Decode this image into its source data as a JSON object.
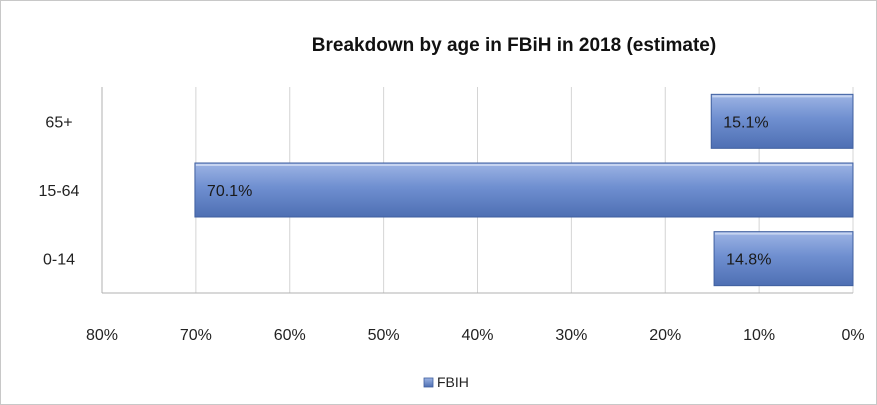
{
  "chart_data": {
    "type": "bar",
    "orientation": "horizontal",
    "x_axis_reversed": true,
    "title": "Breakdown by age  in FBiH in 2018 (estimate)",
    "categories": [
      "65+",
      "15-64",
      "0-14"
    ],
    "series": [
      {
        "name": "FBIH",
        "values": [
          15.1,
          70.1,
          14.8
        ],
        "color": "#6f8fd0"
      }
    ],
    "data_labels": [
      "15.1%",
      "70.1%",
      "14.8%"
    ],
    "xlim": [
      0,
      80
    ],
    "x_ticks": [
      "80%",
      "70%",
      "60%",
      "50%",
      "40%",
      "30%",
      "20%",
      "10%",
      "0%"
    ],
    "grid": true,
    "legend_position": "bottom"
  }
}
